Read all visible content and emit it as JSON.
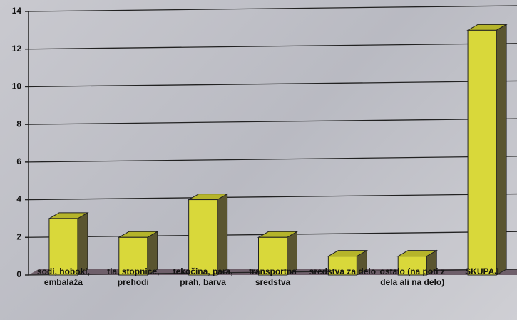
{
  "chart_data": {
    "type": "bar",
    "categories": [
      "sodi, hoboki, embalaža",
      "tla, stopnice, prehodi",
      "tekočina, para, prah, barva",
      "transportna sredstva",
      "sredstva za delo",
      "ostalo (na poti z dela ali na delo)",
      "SKUPAJ"
    ],
    "values": [
      3,
      2,
      4,
      2,
      1,
      1,
      13
    ],
    "color": "#d9d83a",
    "ylim": [
      0,
      14
    ],
    "yticks": [
      0,
      2,
      4,
      6,
      8,
      10,
      12,
      14
    ],
    "grid": true
  }
}
